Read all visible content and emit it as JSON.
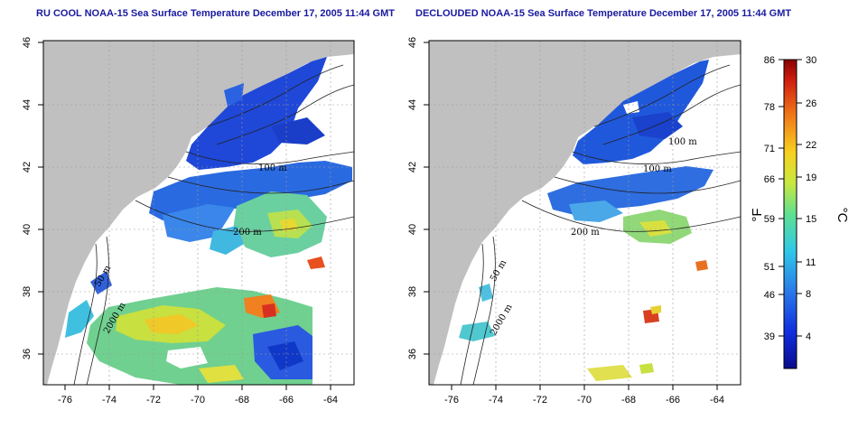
{
  "panels": [
    {
      "title": "RU COOL NOAA-15 Sea Surface Temperature December 17, 2005 11:44 GMT",
      "y_ticks": [
        "36",
        "38",
        "40",
        "42",
        "44",
        "46"
      ],
      "x_ticks": [
        "-76",
        "-74",
        "-72",
        "-70",
        "-68",
        "-66",
        "-64"
      ],
      "contour_labels": [
        "100 m",
        "200 m",
        "50 m",
        "2000 m"
      ]
    },
    {
      "title": "DECLOUDED NOAA-15 Sea Surface Temperature December 17, 2005 11:44 GMT",
      "y_ticks": [
        "36",
        "38",
        "40",
        "42",
        "44",
        "46"
      ],
      "x_ticks": [
        "-76",
        "-74",
        "-72",
        "-70",
        "-68",
        "-66",
        "-64"
      ],
      "contour_labels": [
        "100 m",
        "100 m",
        "200 m",
        "50 m",
        "2000 m"
      ]
    }
  ],
  "colorbar": {
    "fahrenheit_ticks": [
      "86",
      "78",
      "71",
      "66",
      "59",
      "51",
      "46",
      "39"
    ],
    "celsius_ticks": [
      "30",
      "26",
      "22",
      "19",
      "15",
      "11",
      "8",
      "4"
    ],
    "fahrenheit_unit": "°F",
    "celsius_unit": "°C",
    "colors": [
      "#0a0a8c",
      "#1030e0",
      "#2a7ae8",
      "#30c8e8",
      "#60e090",
      "#c8e840",
      "#f8d020",
      "#f07818",
      "#d02010",
      "#8a0000"
    ]
  },
  "colors": {
    "land": "#c0c0c0",
    "title": "#1a1aa0"
  }
}
